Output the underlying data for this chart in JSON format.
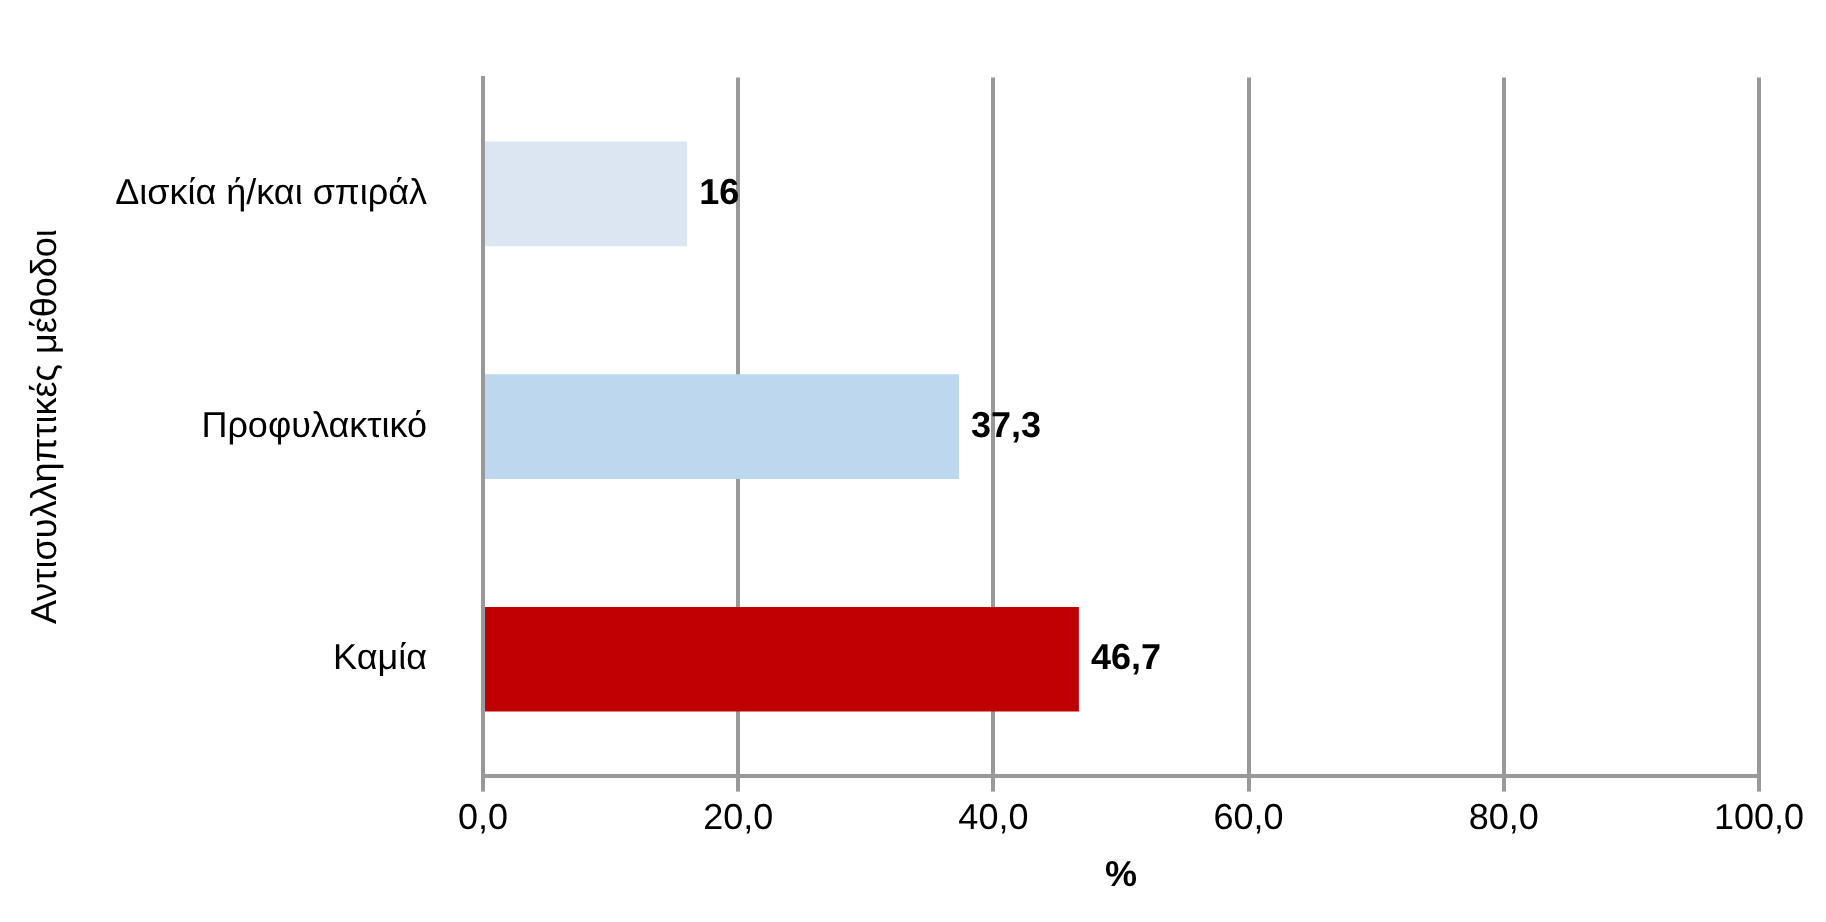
{
  "chart_data": {
    "type": "bar",
    "orientation": "horizontal",
    "xlabel": "%",
    "ylabel": "Αντισυλληπτικές μέθοδοι",
    "categories": [
      "Δισκία ή/και σπιράλ",
      "Προφυλακτικό",
      "Καμία"
    ],
    "values": [
      16,
      37.3,
      46.7
    ],
    "colors": [
      "#dce6f2",
      "#bdd7ee",
      "#c00000"
    ],
    "value_labels": [
      "16",
      "37,3",
      "46,7"
    ],
    "xlim": [
      0,
      100
    ],
    "xticks": [
      {
        "value": 0,
        "label": "0,0"
      },
      {
        "value": 20,
        "label": "20,0"
      },
      {
        "value": 40,
        "label": "40,0"
      },
      {
        "value": 60,
        "label": "60,0"
      },
      {
        "value": 80,
        "label": "80,0"
      },
      {
        "value": 100,
        "label": "100,0"
      }
    ],
    "grid": "x"
  }
}
